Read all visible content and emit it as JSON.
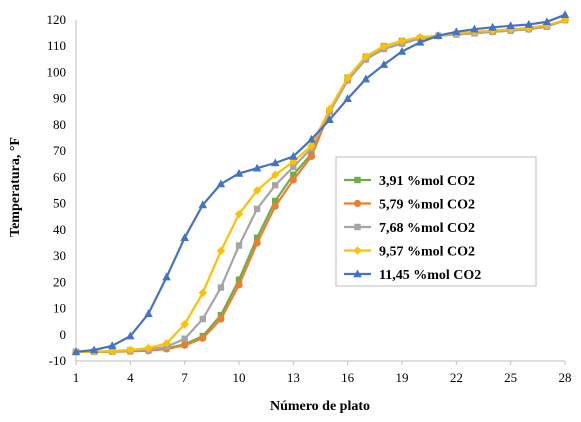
{
  "chart_data": {
    "type": "line",
    "title": "",
    "xlabel": "Número de plato",
    "ylabel": "Temperatura, °F",
    "xlim": [
      1,
      28
    ],
    "ylim": [
      -10,
      120
    ],
    "x_ticks": [
      1,
      4,
      7,
      10,
      13,
      16,
      19,
      22,
      25,
      28
    ],
    "y_ticks": [
      -10,
      0,
      10,
      20,
      30,
      40,
      50,
      60,
      70,
      80,
      90,
      100,
      110,
      120
    ],
    "grid": false,
    "legend_position": "center-right",
    "x": [
      1,
      2,
      3,
      4,
      5,
      6,
      7,
      8,
      9,
      10,
      11,
      12,
      13,
      14,
      15,
      16,
      17,
      18,
      19,
      20,
      21,
      22,
      23,
      24,
      25,
      26,
      27,
      28
    ],
    "series": [
      {
        "name": "3,91 %mol CO2",
        "color": "#70ad47",
        "marker": "square",
        "values": [
          -6.5,
          -6.5,
          -6.4,
          -6.2,
          -5.9,
          -5.2,
          -3.6,
          -0.5,
          7.5,
          21,
          37,
          51,
          61,
          69,
          85,
          98,
          106,
          110,
          112,
          113,
          114,
          114.5,
          115,
          115.5,
          116,
          116.5,
          117.5,
          120
        ]
      },
      {
        "name": "5,79 %mol CO2",
        "color": "#ed7d31",
        "marker": "circle",
        "values": [
          -6.5,
          -6.5,
          -6.4,
          -6.3,
          -6.1,
          -5.4,
          -4,
          -1.3,
          6,
          19,
          35,
          49,
          59,
          68,
          85,
          97,
          105,
          109,
          111,
          113,
          114,
          114.5,
          115,
          115.5,
          116,
          116.5,
          117.5,
          120
        ]
      },
      {
        "name": "7,68 %mol CO2",
        "color": "#a5a5a5",
        "marker": "square",
        "values": [
          -6.5,
          -6.5,
          -6.3,
          -6,
          -5.6,
          -4.6,
          -1.5,
          6,
          18,
          34,
          48,
          57,
          64,
          71,
          85,
          97,
          105,
          109,
          111,
          113,
          114,
          114.5,
          115,
          115.5,
          116,
          116.5,
          117.5,
          120
        ]
      },
      {
        "name": "9,57 %mol CO2",
        "color": "#ffc000",
        "marker": "diamond",
        "values": [
          -6.5,
          -6.4,
          -6.2,
          -5.8,
          -5.1,
          -3.3,
          4,
          16,
          32,
          46,
          55,
          61,
          66,
          72,
          86,
          98,
          106,
          110,
          112,
          113.5,
          114,
          115,
          115.5,
          116,
          116.5,
          117,
          118,
          120
        ]
      },
      {
        "name": "11,45 %mol CO2",
        "color": "#4472c4",
        "marker": "triangle",
        "values": [
          -6.5,
          -5.8,
          -4.2,
          -0.5,
          8,
          22,
          37,
          49.5,
          57.5,
          61.5,
          63.5,
          65.5,
          68,
          74.5,
          82,
          90,
          97.5,
          103,
          108,
          111.5,
          114,
          115.5,
          116.5,
          117.2,
          117.8,
          118.3,
          119.3,
          122
        ]
      }
    ]
  }
}
